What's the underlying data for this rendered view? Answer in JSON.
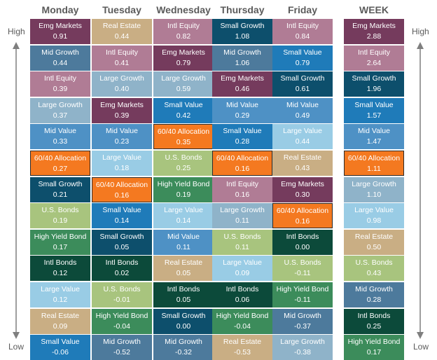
{
  "columns": [
    {
      "day": "Monday",
      "cells": [
        {
          "name": "Emg Markets",
          "value": "0.91",
          "color": "#753b5d"
        },
        {
          "name": "Mid Growth",
          "value": "0.44",
          "color": "#4d7a9c"
        },
        {
          "name": "Intl Equity",
          "value": "0.39",
          "color": "#b07c95"
        },
        {
          "name": "Large Growth",
          "value": "0.37",
          "color": "#8fb3c9"
        },
        {
          "name": "Mid Value",
          "value": "0.33",
          "color": "#4e91c5"
        },
        {
          "name": "60/40 Allocation",
          "value": "0.27",
          "color": "#f47920",
          "highlight": true
        },
        {
          "name": "Small Growth",
          "value": "0.21",
          "color": "#0d4f6c"
        },
        {
          "name": "U.S. Bonds",
          "value": "0.19",
          "color": "#a8c47e"
        },
        {
          "name": "High Yield Bond",
          "value": "0.17",
          "color": "#3c8c5b"
        },
        {
          "name": "Intl Bonds",
          "value": "0.12",
          "color": "#0c4a3a"
        },
        {
          "name": "Large Value",
          "value": "0.12",
          "color": "#99cce5"
        },
        {
          "name": "Real Estate",
          "value": "0.09",
          "color": "#c9ae84"
        },
        {
          "name": "Small Value",
          "value": "-0.06",
          "color": "#1f7bb9"
        }
      ]
    },
    {
      "day": "Tuesday",
      "cells": [
        {
          "name": "Real Estate",
          "value": "0.44",
          "color": "#c9ae84"
        },
        {
          "name": "Intl Equity",
          "value": "0.41",
          "color": "#b07c95"
        },
        {
          "name": "Large Growth",
          "value": "0.40",
          "color": "#8fb3c9"
        },
        {
          "name": "Emg Markets",
          "value": "0.39",
          "color": "#753b5d"
        },
        {
          "name": "Mid Value",
          "value": "0.23",
          "color": "#4e91c5"
        },
        {
          "name": "Large Value",
          "value": "0.18",
          "color": "#99cce5"
        },
        {
          "name": "60/40 Allocation",
          "value": "0.16",
          "color": "#f47920",
          "highlight": true
        },
        {
          "name": "Small Value",
          "value": "0.14",
          "color": "#1f7bb9"
        },
        {
          "name": "Small Growth",
          "value": "0.05",
          "color": "#0d4f6c"
        },
        {
          "name": "Intl Bonds",
          "value": "0.02",
          "color": "#0c4a3a"
        },
        {
          "name": "U.S. Bonds",
          "value": "-0.01",
          "color": "#a8c47e"
        },
        {
          "name": "High Yield Bond",
          "value": "-0.04",
          "color": "#3c8c5b"
        },
        {
          "name": "Mid Growth",
          "value": "-0.52",
          "color": "#4d7a9c"
        }
      ]
    },
    {
      "day": "Wednesday",
      "cells": [
        {
          "name": "Intl Equity",
          "value": "0.82",
          "color": "#b07c95"
        },
        {
          "name": "Emg Markets",
          "value": "0.79",
          "color": "#753b5d"
        },
        {
          "name": "Large Growth",
          "value": "0.59",
          "color": "#8fb3c9"
        },
        {
          "name": "Small Value",
          "value": "0.42",
          "color": "#1f7bb9"
        },
        {
          "name": "60/40 Allocation",
          "value": "0.35",
          "color": "#f47920",
          "highlight": true
        },
        {
          "name": "U.S. Bonds",
          "value": "0.25",
          "color": "#a8c47e"
        },
        {
          "name": "High Yield Bond",
          "value": "0.19",
          "color": "#3c8c5b"
        },
        {
          "name": "Large Value",
          "value": "0.14",
          "color": "#99cce5"
        },
        {
          "name": "Mid Value",
          "value": "0.11",
          "color": "#4e91c5"
        },
        {
          "name": "Real Estate",
          "value": "0.05",
          "color": "#c9ae84"
        },
        {
          "name": "Intl Bonds",
          "value": "0.05",
          "color": "#0c4a3a"
        },
        {
          "name": "Small Growth",
          "value": "0.00",
          "color": "#0d4f6c"
        },
        {
          "name": "Mid Growth",
          "value": "-0.32",
          "color": "#4d7a9c"
        }
      ]
    },
    {
      "day": "Thursday",
      "cells": [
        {
          "name": "Small Growth",
          "value": "1.08",
          "color": "#0d4f6c"
        },
        {
          "name": "Mid Growth",
          "value": "1.06",
          "color": "#4d7a9c"
        },
        {
          "name": "Emg Markets",
          "value": "0.46",
          "color": "#753b5d"
        },
        {
          "name": "Mid Value",
          "value": "0.29",
          "color": "#4e91c5"
        },
        {
          "name": "Small Value",
          "value": "0.28",
          "color": "#1f7bb9"
        },
        {
          "name": "60/40 Allocation",
          "value": "0.16",
          "color": "#f47920",
          "highlight": true
        },
        {
          "name": "Intl Equity",
          "value": "0.16",
          "color": "#b07c95"
        },
        {
          "name": "Large Growth",
          "value": "0.11",
          "color": "#8fb3c9"
        },
        {
          "name": "U.S. Bonds",
          "value": "0.11",
          "color": "#a8c47e"
        },
        {
          "name": "Large Value",
          "value": "0.09",
          "color": "#99cce5"
        },
        {
          "name": "Intl Bonds",
          "value": "0.06",
          "color": "#0c4a3a"
        },
        {
          "name": "High Yield Bond",
          "value": "-0.04",
          "color": "#3c8c5b"
        },
        {
          "name": "Real Estate",
          "value": "-0.53",
          "color": "#c9ae84"
        }
      ]
    },
    {
      "day": "Friday",
      "cells": [
        {
          "name": "Intl Equity",
          "value": "0.84",
          "color": "#b07c95"
        },
        {
          "name": "Small Value",
          "value": "0.79",
          "color": "#1f7bb9"
        },
        {
          "name": "Small Growth",
          "value": "0.61",
          "color": "#0d4f6c"
        },
        {
          "name": "Mid Value",
          "value": "0.49",
          "color": "#4e91c5"
        },
        {
          "name": "Large Value",
          "value": "0.44",
          "color": "#99cce5"
        },
        {
          "name": "Real Estate",
          "value": "0.43",
          "color": "#c9ae84"
        },
        {
          "name": "Emg Markets",
          "value": "0.30",
          "color": "#753b5d"
        },
        {
          "name": "60/40 Allocation",
          "value": "0.16",
          "color": "#f47920",
          "highlight": true
        },
        {
          "name": "Intl Bonds",
          "value": "0.00",
          "color": "#0c4a3a"
        },
        {
          "name": "U.S. Bonds",
          "value": "-0.11",
          "color": "#a8c47e"
        },
        {
          "name": "High Yield Bond",
          "value": "-0.11",
          "color": "#3c8c5b"
        },
        {
          "name": "Mid Growth",
          "value": "-0.37",
          "color": "#4d7a9c"
        },
        {
          "name": "Large Growth",
          "value": "-0.38",
          "color": "#8fb3c9"
        }
      ]
    },
    {
      "day": "WEEK",
      "cells": [
        {
          "name": "Emg Markets",
          "value": "2.88",
          "color": "#753b5d"
        },
        {
          "name": "Intl Equity",
          "value": "2.64",
          "color": "#b07c95"
        },
        {
          "name": "Small Growth",
          "value": "1.96",
          "color": "#0d4f6c"
        },
        {
          "name": "Small Value",
          "value": "1.57",
          "color": "#1f7bb9"
        },
        {
          "name": "Mid Value",
          "value": "1.47",
          "color": "#4e91c5"
        },
        {
          "name": "60/40 Allocation",
          "value": "1.11",
          "color": "#f47920",
          "highlight": true
        },
        {
          "name": "Large Growth",
          "value": "1.10",
          "color": "#8fb3c9"
        },
        {
          "name": "Large Value",
          "value": "0.98",
          "color": "#99cce5"
        },
        {
          "name": "Real Estate",
          "value": "0.50",
          "color": "#c9ae84"
        },
        {
          "name": "U.S. Bonds",
          "value": "0.43",
          "color": "#a8c47e"
        },
        {
          "name": "Mid Growth",
          "value": "0.28",
          "color": "#4d7a9c"
        },
        {
          "name": "Intl Bonds",
          "value": "0.25",
          "color": "#0c4a3a"
        },
        {
          "name": "High Yield Bond",
          "value": "0.17",
          "color": "#3c8c5b"
        }
      ]
    }
  ],
  "labels": {
    "high_left": "High",
    "low_left": "Low",
    "high_right": "High",
    "low_right": "Low"
  }
}
